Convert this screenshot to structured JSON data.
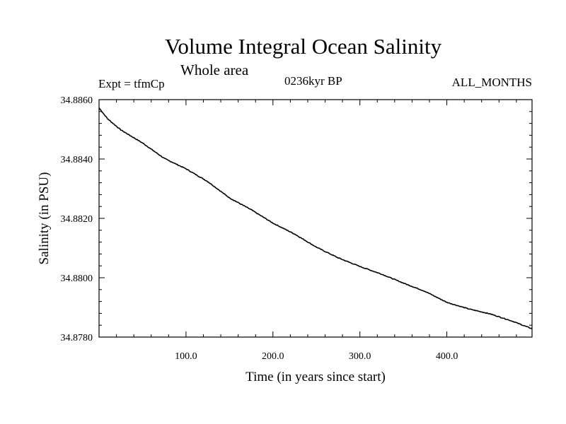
{
  "chart_data": {
    "type": "line",
    "title": "Volume Integral Ocean Salinity",
    "subtitle": "Whole area",
    "header_left": "Expt = tfmCp",
    "header_center": "0236kyr BP",
    "header_right": "ALL_MONTHS",
    "xlabel": "Time (in years since start)",
    "ylabel": "Salinity (in PSU)",
    "xlim": [
      0,
      498
    ],
    "ylim": [
      34.878,
      34.886
    ],
    "xticks": [
      100,
      200,
      300,
      400
    ],
    "xtick_labels": [
      "100.0",
      "200.0",
      "300.0",
      "400.0"
    ],
    "yticks": [
      34.878,
      34.88,
      34.882,
      34.884,
      34.886
    ],
    "ytick_labels": [
      "34.8780",
      "34.8800",
      "34.8820",
      "34.8840",
      "34.8860"
    ],
    "grid": false,
    "series": [
      {
        "color": "#000000",
        "x": [
          0,
          10,
          25,
          50,
          75,
          100,
          125,
          150,
          175,
          200,
          225,
          250,
          275,
          300,
          325,
          350,
          375,
          400,
          425,
          450,
          475,
          498
        ],
        "y": [
          34.88572,
          34.88535,
          34.88498,
          34.88454,
          34.88402,
          34.88367,
          34.88324,
          34.88269,
          34.88229,
          34.88184,
          34.88147,
          34.88103,
          34.88067,
          34.88038,
          34.88012,
          34.87982,
          34.87954,
          34.87917,
          34.87895,
          34.87878,
          34.87854,
          34.87828
        ]
      }
    ]
  }
}
